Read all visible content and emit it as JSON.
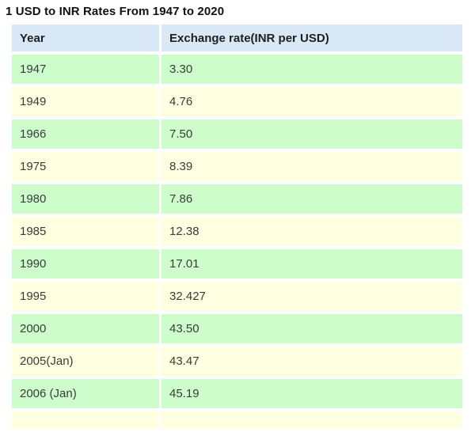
{
  "page": {
    "title": "1 USD to INR Rates From 1947 to 2020"
  },
  "table": {
    "headers": {
      "year": "Year",
      "rate": "Exchange rate(INR per USD)"
    },
    "rows": [
      {
        "year": "1947",
        "rate": "3.30"
      },
      {
        "year": "1949",
        "rate": "4.76"
      },
      {
        "year": "1966",
        "rate": "7.50"
      },
      {
        "year": "1975",
        "rate": "8.39"
      },
      {
        "year": "1980",
        "rate": "7.86"
      },
      {
        "year": "1985",
        "rate": "12.38"
      },
      {
        "year": "1990",
        "rate": "17.01"
      },
      {
        "year": "1995",
        "rate": "32.427"
      },
      {
        "year": "2000",
        "rate": "43.50"
      },
      {
        "year": "2005(Jan)",
        "rate": "43.47"
      },
      {
        "year": "2006 (Jan)",
        "rate": "45.19"
      },
      {
        "year": "",
        "rate": ""
      }
    ]
  },
  "chart_data": {
    "type": "table",
    "title": "1 USD to INR Rates From 1947 to 2020",
    "columns": [
      "Year",
      "Exchange rate(INR per USD)"
    ],
    "categories": [
      "1947",
      "1949",
      "1966",
      "1975",
      "1980",
      "1985",
      "1990",
      "1995",
      "2000",
      "2005(Jan)",
      "2006 (Jan)"
    ],
    "values": [
      3.3,
      4.76,
      7.5,
      8.39,
      7.86,
      12.38,
      17.01,
      32.427,
      43.5,
      43.47,
      45.19
    ],
    "xlabel": "Year",
    "ylabel": "Exchange rate(INR per USD)"
  },
  "colors": {
    "header_bg": "#d8e8f6",
    "row_green": "#ccfdcb",
    "row_yellow": "#fefee0",
    "title_text": "#111111",
    "cell_text": "#3b3b3b"
  }
}
